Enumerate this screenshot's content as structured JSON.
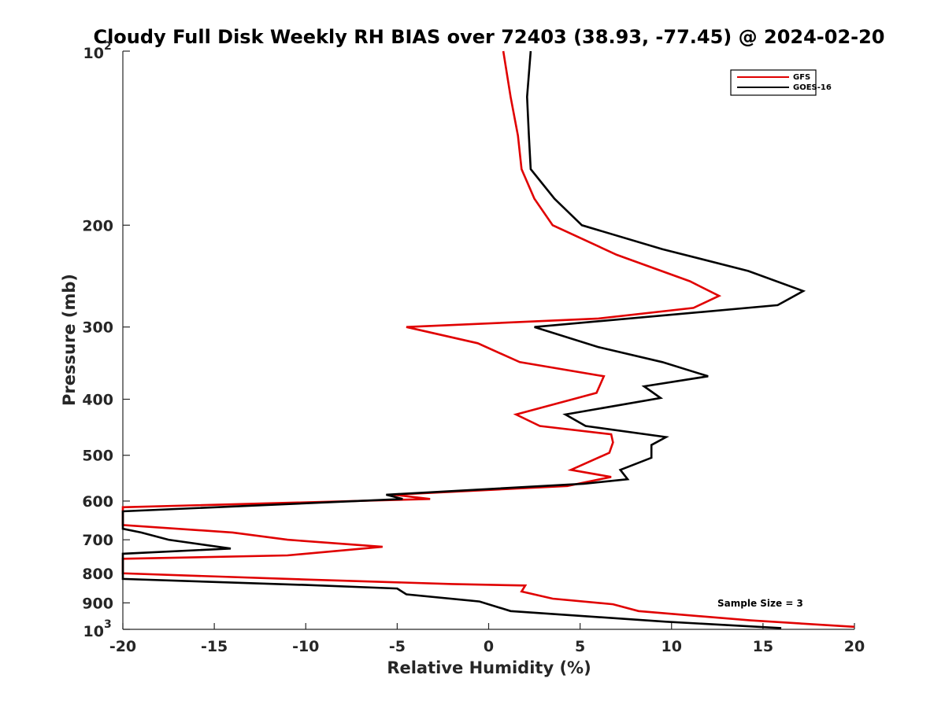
{
  "chart_data": {
    "type": "line",
    "title": "Cloudy Full Disk Weekly RH BIAS over 72403 (38.93, -77.45) @ 2024-02-20",
    "xlabel": "Relative Humidity (%)",
    "ylabel": "Pressure (mb)",
    "xlim": [
      -20,
      20
    ],
    "ylim": [
      100,
      1000
    ],
    "y_scale": "log",
    "y_reversed": true,
    "x_ticks": [
      "-20",
      "-15",
      "-10",
      "-5",
      "0",
      "5",
      "10",
      "15",
      "20"
    ],
    "y_ticks": [
      {
        "value": 100,
        "base": "10",
        "exp": "2"
      },
      {
        "value": 200,
        "label": "200"
      },
      {
        "value": 300,
        "label": "300"
      },
      {
        "value": 400,
        "label": "400"
      },
      {
        "value": 500,
        "label": "500"
      },
      {
        "value": 600,
        "label": "600"
      },
      {
        "value": 700,
        "label": "700"
      },
      {
        "value": 800,
        "label": "800"
      },
      {
        "value": 900,
        "label": "900"
      },
      {
        "value": 1000,
        "base": "10",
        "exp": "3"
      }
    ],
    "legend_position": "top-right",
    "grid": false,
    "annotation": "Sample Size = 3",
    "series": [
      {
        "name": "GFS",
        "color": "#e00000",
        "points": [
          [
            0.8,
            100
          ],
          [
            1.2,
            120
          ],
          [
            1.6,
            140
          ],
          [
            1.8,
            160
          ],
          [
            2.5,
            180
          ],
          [
            3.5,
            200
          ],
          [
            7,
            225
          ],
          [
            11,
            250
          ],
          [
            12.6,
            265
          ],
          [
            11.2,
            278
          ],
          [
            6,
            290
          ],
          [
            -4.5,
            300
          ],
          [
            -0.6,
            320
          ],
          [
            1.7,
            345
          ],
          [
            6.3,
            365
          ],
          [
            5.9,
            390
          ],
          [
            1.5,
            425
          ],
          [
            2.8,
            445
          ],
          [
            6.7,
            460
          ],
          [
            6.8,
            475
          ],
          [
            6.6,
            495
          ],
          [
            4.5,
            530
          ],
          [
            6.7,
            545
          ],
          [
            4.3,
            565
          ],
          [
            -5.2,
            585
          ],
          [
            -3.2,
            595
          ],
          [
            -20,
            615
          ],
          [
            -20,
            660
          ],
          [
            -14,
            680
          ],
          [
            -11,
            700
          ],
          [
            -5.8,
            720
          ],
          [
            -11,
            745
          ],
          [
            -20,
            755
          ],
          [
            -20,
            800
          ],
          [
            -10,
            820
          ],
          [
            -2,
            835
          ],
          [
            2,
            840
          ],
          [
            1.8,
            860
          ],
          [
            3.5,
            885
          ],
          [
            6.8,
            905
          ],
          [
            8.2,
            930
          ],
          [
            14.3,
            965
          ],
          [
            20,
            990
          ]
        ]
      },
      {
        "name": "GOES-16",
        "color": "#000000",
        "points": [
          [
            2.3,
            100
          ],
          [
            2.1,
            120
          ],
          [
            2.2,
            140
          ],
          [
            2.3,
            160
          ],
          [
            3.6,
            180
          ],
          [
            5.1,
            200
          ],
          [
            9.5,
            220
          ],
          [
            14.2,
            240
          ],
          [
            17.2,
            260
          ],
          [
            15.8,
            275
          ],
          [
            2.5,
            300
          ],
          [
            6,
            325
          ],
          [
            9.5,
            345
          ],
          [
            12,
            365
          ],
          [
            8.5,
            380
          ],
          [
            9.4,
            398
          ],
          [
            4.2,
            425
          ],
          [
            5.3,
            445
          ],
          [
            9.7,
            465
          ],
          [
            8.9,
            480
          ],
          [
            8.9,
            505
          ],
          [
            7.2,
            530
          ],
          [
            7.6,
            550
          ],
          [
            5.2,
            560
          ],
          [
            -5.6,
            585
          ],
          [
            -4.7,
            595
          ],
          [
            -20,
            625
          ],
          [
            -20,
            670
          ],
          [
            -19,
            680
          ],
          [
            -17.5,
            700
          ],
          [
            -14.1,
            725
          ],
          [
            -20,
            740
          ],
          [
            -20,
            818
          ],
          [
            -10,
            838
          ],
          [
            -5,
            850
          ],
          [
            -4.5,
            870
          ],
          [
            -0.5,
            895
          ],
          [
            1.2,
            930
          ],
          [
            9.7,
            970
          ],
          [
            16,
            995
          ]
        ]
      }
    ]
  }
}
